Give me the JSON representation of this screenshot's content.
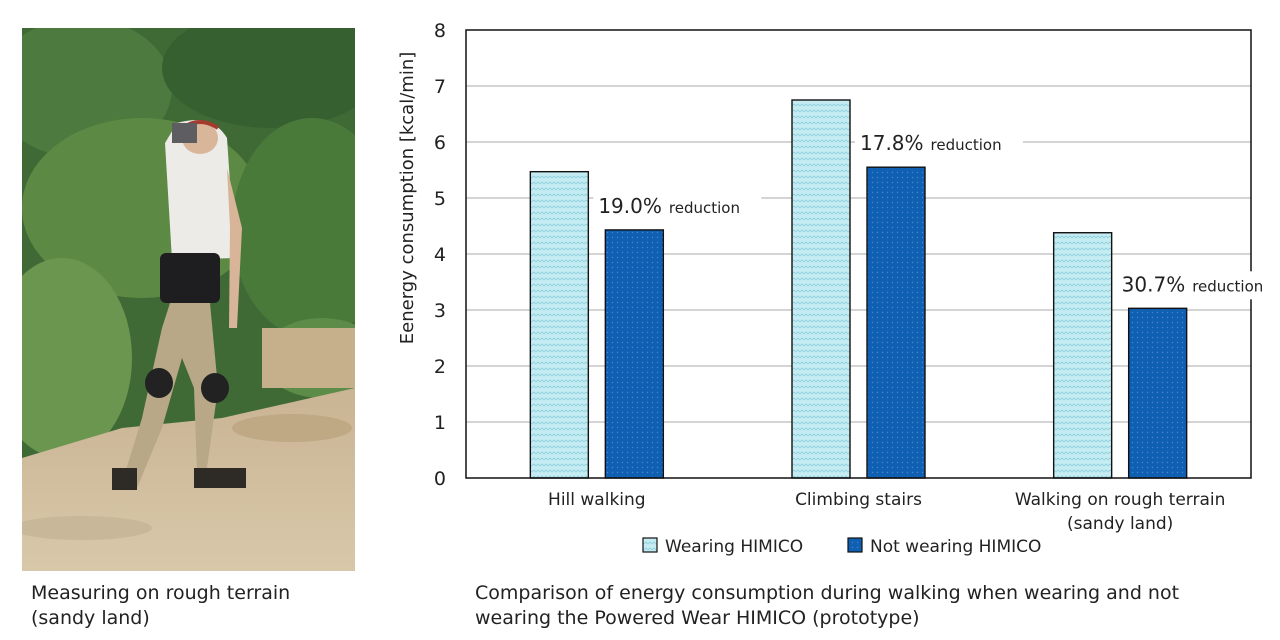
{
  "photo": {
    "caption_line1": "Measuring on rough terrain",
    "caption_line2": "(sandy land)"
  },
  "caption": {
    "line1": "Comparison of energy consumption during walking when wearing and not",
    "line2": "wearing the Powered Wear HIMICO (prototype)"
  },
  "colors": {
    "wearing": "#c4ecf2",
    "not_wearing": "#0f5fb3",
    "grid": "#aaaaaa"
  },
  "chart_data": {
    "type": "bar",
    "ylabel": "Eenergy consumption [kcal/min]",
    "ylim": [
      0,
      8
    ],
    "yticks": [
      "0",
      "1",
      "2",
      "3",
      "4",
      "5",
      "6",
      "7",
      "8"
    ],
    "grid": true,
    "legend_position": "bottom",
    "categories": [
      [
        "Hill walking"
      ],
      [
        "Climbing stairs"
      ],
      [
        "Walking on rough terrain",
        "(sandy land)"
      ]
    ],
    "series": [
      {
        "name": "Wearing HIMICO",
        "values": [
          5.47,
          6.75,
          4.38
        ]
      },
      {
        "name": "Not wearing HIMICO",
        "values": [
          4.43,
          5.55,
          3.03
        ]
      }
    ],
    "annotations": [
      {
        "value": "19.0%",
        "unit": "reduction"
      },
      {
        "value": "17.8%",
        "unit": "reduction"
      },
      {
        "value": "30.7%",
        "unit": "reduction"
      }
    ]
  }
}
